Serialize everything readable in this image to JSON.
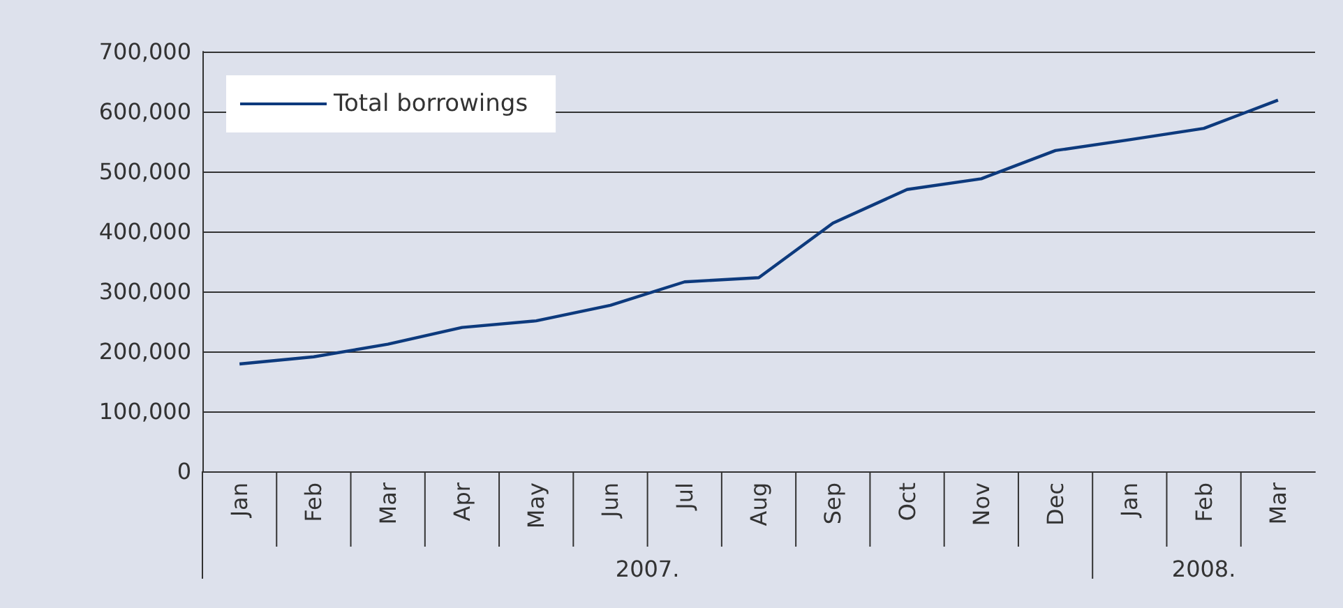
{
  "chart_data": {
    "type": "line",
    "categories": [
      "Jan",
      "Feb",
      "Mar",
      "Apr",
      "May",
      "Jun",
      "Jul",
      "Aug",
      "Sep",
      "Oct",
      "Nov",
      "Dec",
      "Jan",
      "Feb",
      "Mar"
    ],
    "series": [
      {
        "name": "Total borrowings",
        "color": "#0d3a7d",
        "values": [
          179000,
          191000,
          212000,
          240000,
          251000,
          277000,
          316000,
          323000,
          414000,
          470000,
          488000,
          535000,
          553000,
          572000,
          619000
        ]
      }
    ],
    "annotations": [
      "2007.",
      "2008."
    ],
    "ylim": [
      0,
      700000
    ],
    "yticks": [
      {
        "value": 0,
        "label": "0"
      },
      {
        "value": 100000,
        "label": "100,000"
      },
      {
        "value": 200000,
        "label": "200,000"
      },
      {
        "value": 300000,
        "label": "300,000"
      },
      {
        "value": 400000,
        "label": "400,000"
      },
      {
        "value": 500000,
        "label": "500,000"
      },
      {
        "value": 600000,
        "label": "600,000"
      },
      {
        "value": 700000,
        "label": "700,000"
      }
    ],
    "grid": "y",
    "legend": "top left",
    "marker": "none",
    "line_style": "solid"
  }
}
